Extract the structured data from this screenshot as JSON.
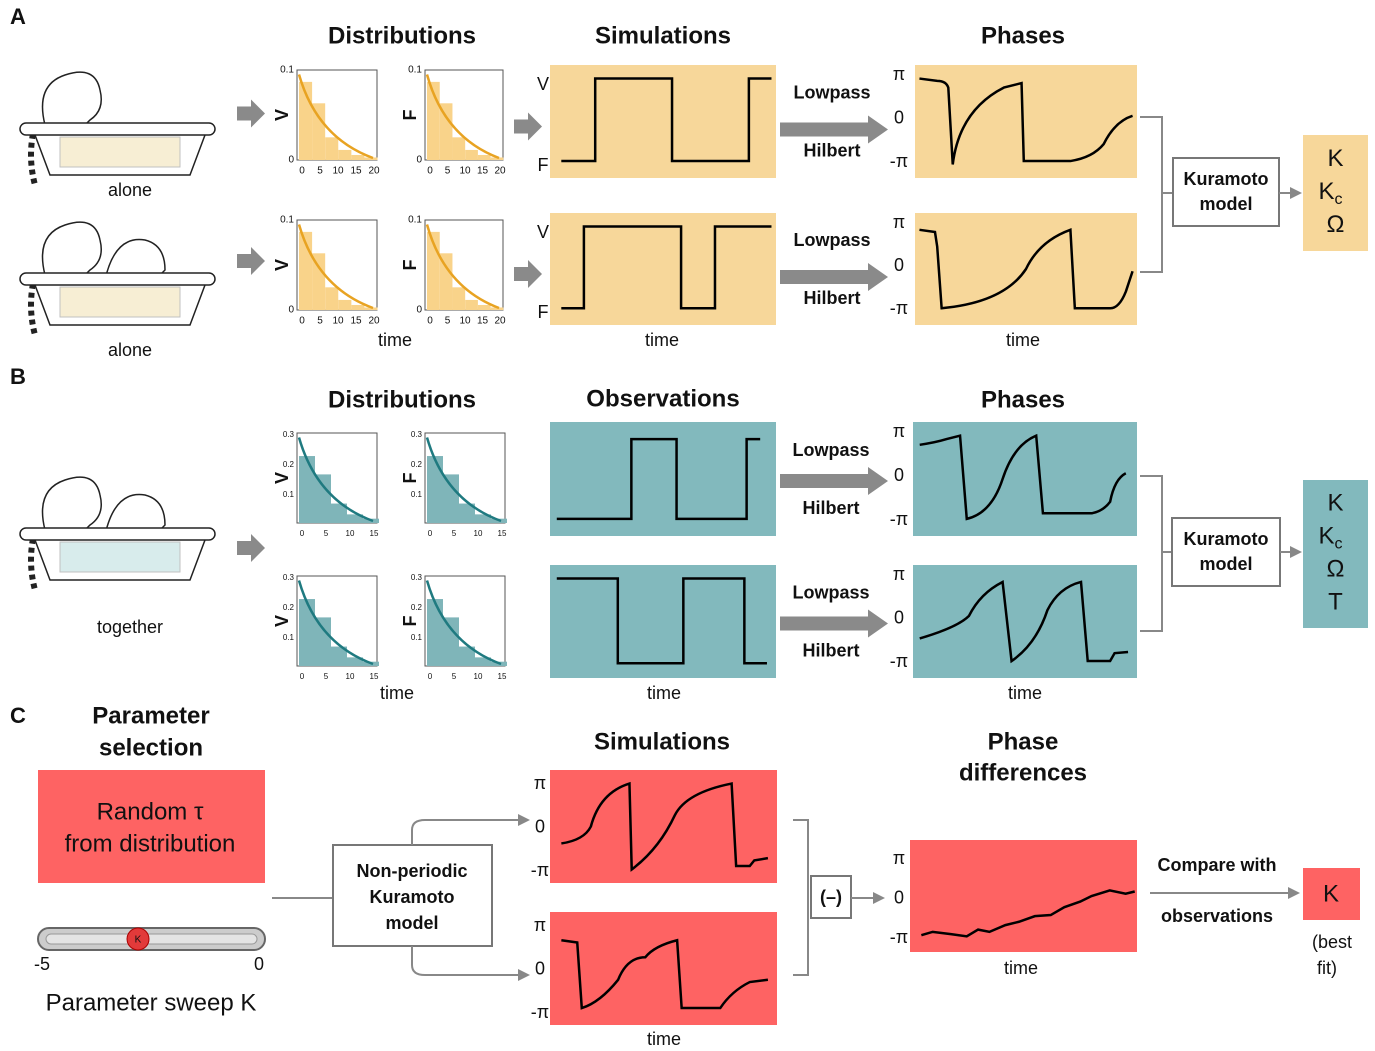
{
  "panel_a": {
    "label": "A",
    "headers": {
      "distributions": "Distributions",
      "simulations": "Simulations",
      "phases": "Phases"
    },
    "conditions": [
      "alone",
      "alone"
    ],
    "histogram_axis": {
      "y_ticks": [
        "0.1",
        "0"
      ],
      "x_ticks": [
        "0",
        "5",
        "10",
        "15",
        "20"
      ]
    },
    "histogram_labels": [
      [
        "V",
        "F"
      ],
      [
        "V",
        "F"
      ]
    ],
    "signal_labels": [
      [
        "V",
        "F"
      ],
      [
        "V",
        "F"
      ]
    ],
    "filter": [
      [
        "Lowpass",
        "Hilbert"
      ],
      [
        "Lowpass",
        "Hilbert"
      ]
    ],
    "phase_ticks": [
      "π",
      "0",
      "-π"
    ],
    "time_labels": [
      "time",
      "time",
      "time"
    ],
    "model": [
      "Kuramoto",
      "model"
    ],
    "outputs": [
      {
        "text": "K"
      },
      {
        "text": "K",
        "sub": "c"
      },
      {
        "text": "Ω"
      }
    ]
  },
  "panel_b": {
    "label": "B",
    "headers": {
      "distributions": "Distributions",
      "observations": "Observations",
      "phases": "Phases"
    },
    "condition": "together",
    "histogram_axis": {
      "y_ticks": [
        "0.3",
        "0.2",
        "0.1"
      ],
      "x_ticks": [
        "0",
        "5",
        "10",
        "15"
      ]
    },
    "histogram_labels": [
      [
        "V",
        "F"
      ],
      [
        "V",
        "F"
      ]
    ],
    "filter": [
      [
        "Lowpass",
        "Hilbert"
      ],
      [
        "Lowpass",
        "Hilbert"
      ]
    ],
    "phase_ticks": [
      "π",
      "0",
      "-π"
    ],
    "time_labels": [
      "time",
      "time",
      "time"
    ],
    "model": [
      "Kuramoto",
      "model"
    ],
    "outputs": [
      {
        "text": "K"
      },
      {
        "text": "K",
        "sub": "c"
      },
      {
        "text": "Ω"
      },
      {
        "text": "T"
      }
    ]
  },
  "panel_c": {
    "label": "C",
    "parameter_selection": [
      "Parameter",
      "selection"
    ],
    "random": [
      "Random τ",
      "from distribution"
    ],
    "slider": {
      "knob": "K",
      "min_label": "-5",
      "max_label": "0"
    },
    "sweep": "Parameter sweep K",
    "model": [
      "Non-periodic",
      "Kuramoto",
      "model"
    ],
    "simulations": "Simulations",
    "phase_ticks": [
      "π",
      "0",
      "-π"
    ],
    "time": "time",
    "subtract": "(–)",
    "phase_differences": [
      "Phase",
      "differences"
    ],
    "phase_difference_time": "time",
    "compare": [
      "Compare with",
      "observations"
    ],
    "result": {
      "text": "K",
      "note": [
        "(best",
        "fit)"
      ]
    }
  }
}
